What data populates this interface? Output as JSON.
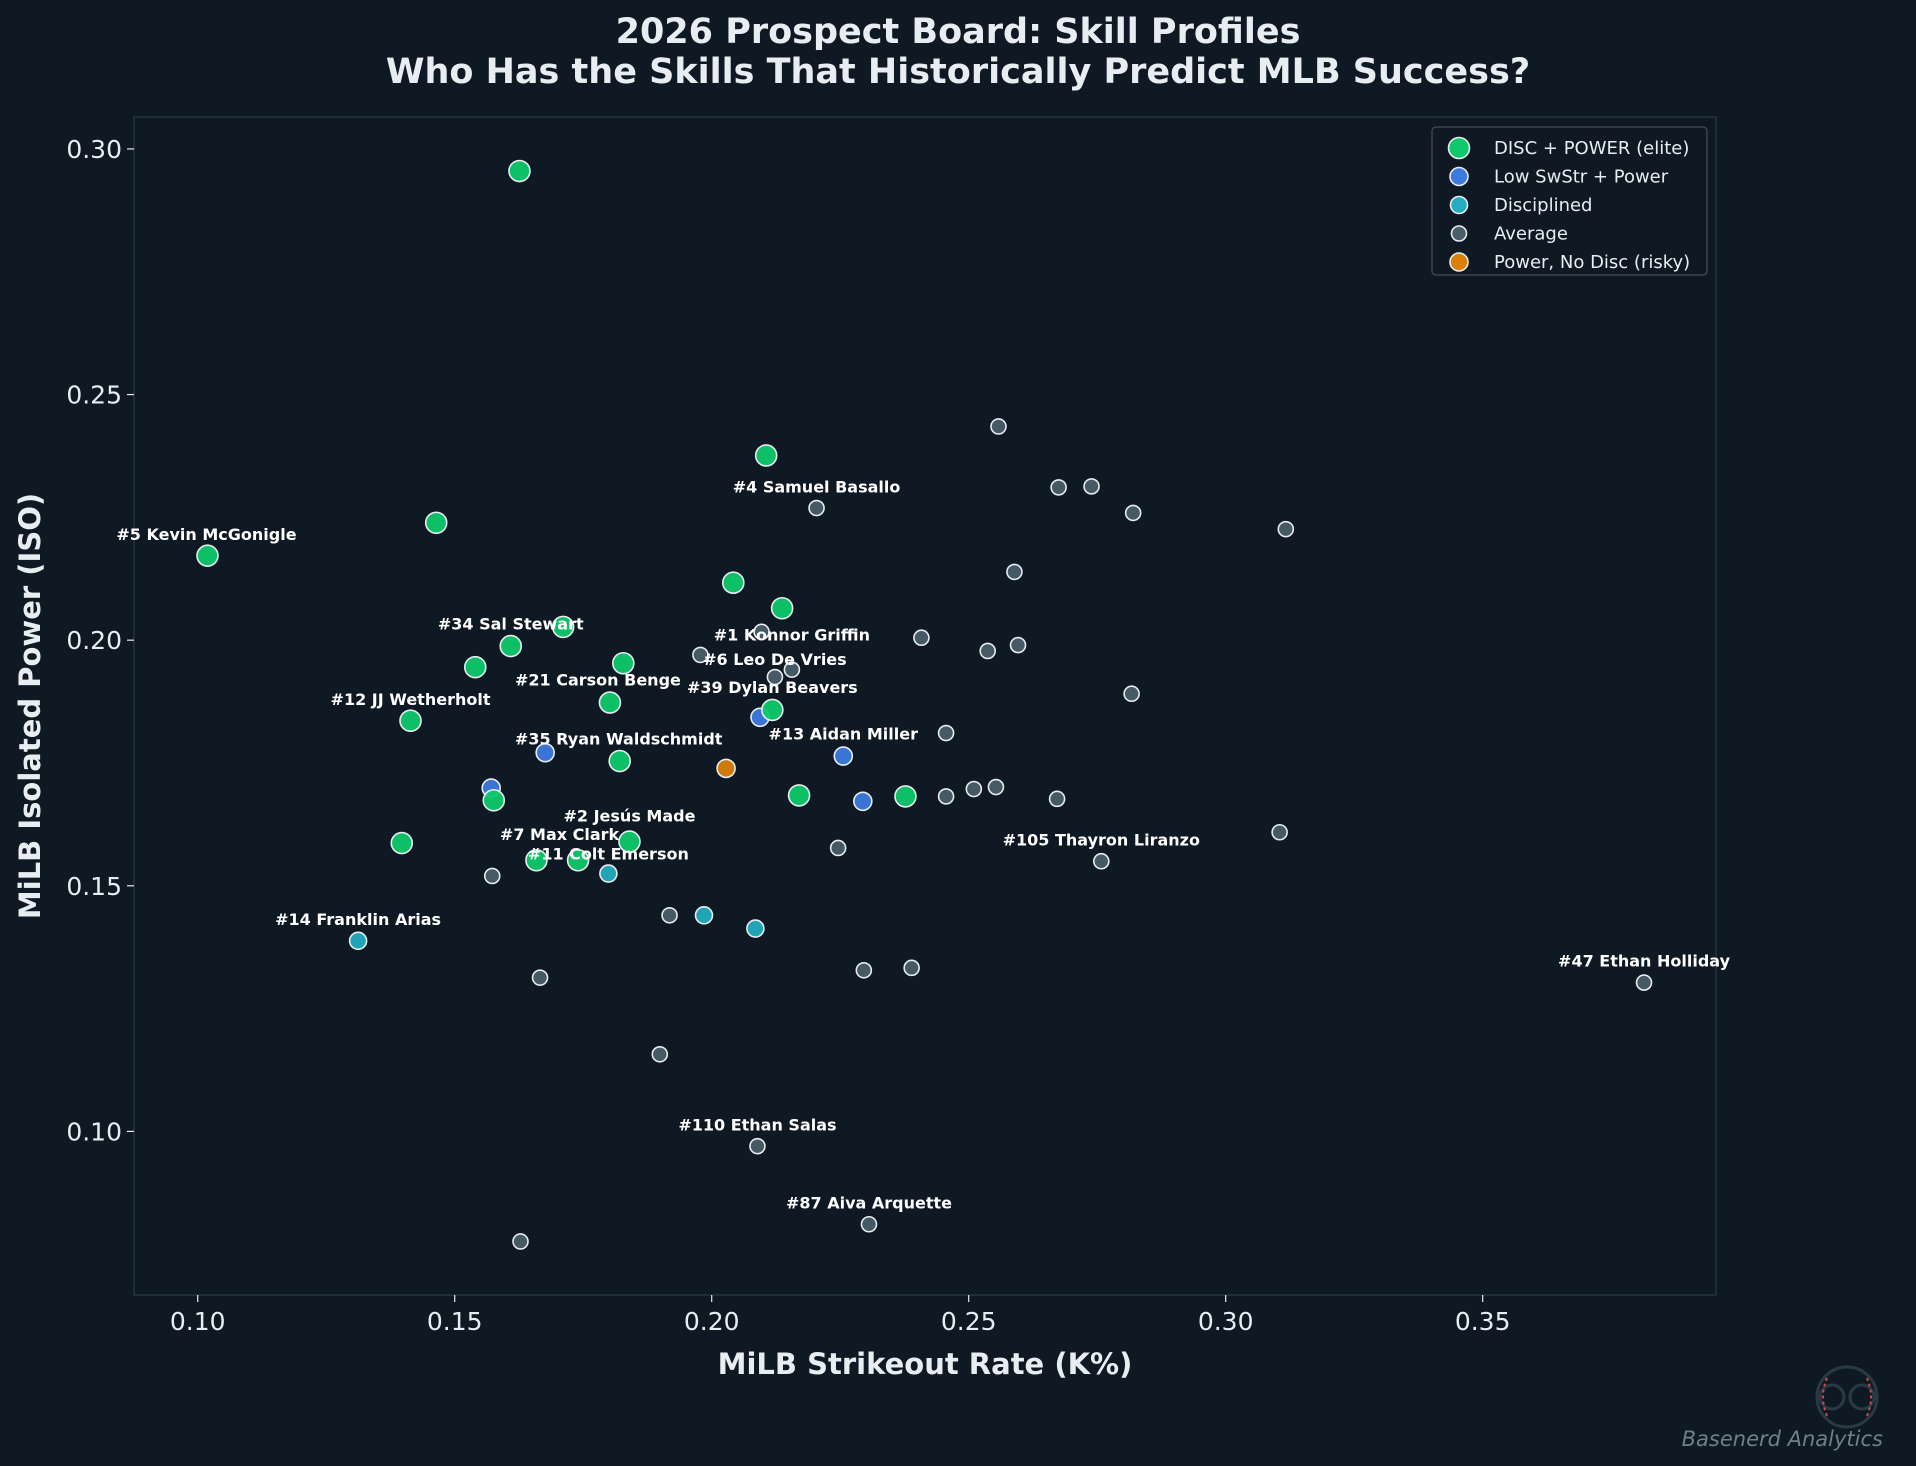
{
  "chart_data": {
    "type": "scatter",
    "title": "2026 Prospect Board: Skill Profiles",
    "subtitle": "Who Has the Skills That Historically Predict MLB Success?",
    "xlabel": "MiLB Strikeout Rate (K%)",
    "ylabel": "MiLB Isolated Power (ISO)",
    "xlim": [
      0.0876,
      0.3954
    ],
    "ylim": [
      0.0667,
      0.3065
    ],
    "xticks": [
      "0.10",
      "0.15",
      "0.20",
      "0.25",
      "0.30",
      "0.35"
    ],
    "yticks": [
      "0.10",
      "0.15",
      "0.20",
      "0.25",
      "0.30"
    ],
    "grid": false,
    "legend_position": "top-right",
    "background": "#0f1923",
    "series": [
      {
        "name": "DISC + POWER (elite)",
        "color": "#0ec96c",
        "points": [
          [
            0.1626,
            0.2955
          ],
          [
            0.2106,
            0.2376
          ],
          [
            0.1464,
            0.2239
          ],
          [
            0.1019,
            0.2172
          ],
          [
            0.2042,
            0.2117
          ],
          [
            0.2137,
            0.2065
          ],
          [
            0.1711,
            0.2027
          ],
          [
            0.1609,
            0.1988
          ],
          [
            0.154,
            0.1945
          ],
          [
            0.1828,
            0.1953
          ],
          [
            0.1802,
            0.1873
          ],
          [
            0.2118,
            0.1858
          ],
          [
            0.1414,
            0.1836
          ],
          [
            0.1821,
            0.1754
          ],
          [
            0.1576,
            0.1674
          ],
          [
            0.217,
            0.1684
          ],
          [
            0.2377,
            0.1682
          ],
          [
            0.1397,
            0.1587
          ],
          [
            0.184,
            0.159
          ],
          [
            0.1659,
            0.1552
          ],
          [
            0.174,
            0.1552
          ]
        ]
      },
      {
        "name": "Low SwStr + Power",
        "color": "#3d7ae0",
        "points": [
          [
            0.1676,
            0.1771
          ],
          [
            0.1571,
            0.1699
          ],
          [
            0.2094,
            0.1843
          ],
          [
            0.2256,
            0.1764
          ],
          [
            0.2294,
            0.1672
          ]
        ]
      },
      {
        "name": "Disciplined",
        "color": "#22adc0",
        "points": [
          [
            0.1312,
            0.1388
          ],
          [
            0.1799,
            0.1525
          ],
          [
            0.1985,
            0.144
          ],
          [
            0.2085,
            0.1413
          ]
        ]
      },
      {
        "name": "Average",
        "color": "#4a5e69",
        "points": [
          [
            0.2558,
            0.2435
          ],
          [
            0.2675,
            0.2311
          ],
          [
            0.2739,
            0.2313
          ],
          [
            0.282,
            0.2259
          ],
          [
            0.3117,
            0.2226
          ],
          [
            0.2204,
            0.2269
          ],
          [
            0.2589,
            0.2139
          ],
          [
            0.2097,
            0.2017
          ],
          [
            0.2408,
            0.2005
          ],
          [
            0.2537,
            0.1978
          ],
          [
            0.2596,
            0.199
          ],
          [
            0.1978,
            0.197
          ],
          [
            0.2123,
            0.1925
          ],
          [
            0.2156,
            0.194
          ],
          [
            0.2817,
            0.1891
          ],
          [
            0.2456,
            0.1811
          ],
          [
            0.2456,
            0.1682
          ],
          [
            0.251,
            0.1697
          ],
          [
            0.2553,
            0.1701
          ],
          [
            0.2672,
            0.1677
          ],
          [
            0.3105,
            0.1609
          ],
          [
            0.2758,
            0.155
          ],
          [
            0.2246,
            0.1577
          ],
          [
            0.1573,
            0.152
          ],
          [
            0.1918,
            0.144
          ],
          [
            0.1666,
            0.1313
          ],
          [
            0.2296,
            0.1328
          ],
          [
            0.2389,
            0.1333
          ],
          [
            0.3814,
            0.1303
          ],
          [
            0.1899,
            0.1157
          ],
          [
            0.2089,
            0.097
          ],
          [
            0.2306,
            0.0811
          ],
          [
            0.1628,
            0.0776
          ]
        ]
      },
      {
        "name": "Power, No Disc (risky)",
        "color": "#dc7e08",
        "points": [
          [
            0.2028,
            0.1739
          ]
        ]
      }
    ],
    "annotations": [
      {
        "text": "#5 Kevin McGonigle",
        "x": 0.1017,
        "y": 0.2214
      },
      {
        "text": "#4 Samuel Basallo",
        "x": 0.2204,
        "y": 0.2311
      },
      {
        "text": "#34 Sal Stewart",
        "x": 0.1609,
        "y": 0.2032
      },
      {
        "text": "#1 Konnor Griffin",
        "x": 0.2156,
        "y": 0.1985
      },
      {
        "text": "#6 Leo De Vries",
        "x": 0.2123,
        "y": 0.1968
      },
      {
        "text": "#21 Carson Benge",
        "x": 0.1802,
        "y": 0.1918
      },
      {
        "text": "#39 Dylan Beavers",
        "x": 0.2118,
        "y": 0.1903
      },
      {
        "text": "#12 JJ Wetherholt",
        "x": 0.1414,
        "y": 0.1878
      },
      {
        "text": "#13 Aidan Miller",
        "x": 0.2256,
        "y": 0.1808
      },
      {
        "text": "#35 Ryan Waldschmidt",
        "x": 0.1819,
        "y": 0.1798
      },
      {
        "text": "#2 Jesús Made",
        "x": 0.184,
        "y": 0.1629
      },
      {
        "text": "#7 Max Clark",
        "x": 0.1704,
        "y": 0.1597
      },
      {
        "text": "#11 Colt Emerson",
        "x": 0.1799,
        "y": 0.157
      },
      {
        "text": "#105 Thayron Liranzo",
        "x": 0.2758,
        "y": 0.1592
      },
      {
        "text": "#14 Franklin Arias",
        "x": 0.1312,
        "y": 0.143
      },
      {
        "text": "#47 Ethan Holliday",
        "x": 0.3814,
        "y": 0.1346
      },
      {
        "text": "#110 Ethan Salas",
        "x": 0.2089,
        "y": 0.1012
      },
      {
        "text": "#87 Aiva Arquette",
        "x": 0.2306,
        "y": 0.0853
      }
    ]
  },
  "watermark": {
    "text": "Basenerd Analytics",
    "logo": "baseball-glasses-logo"
  }
}
